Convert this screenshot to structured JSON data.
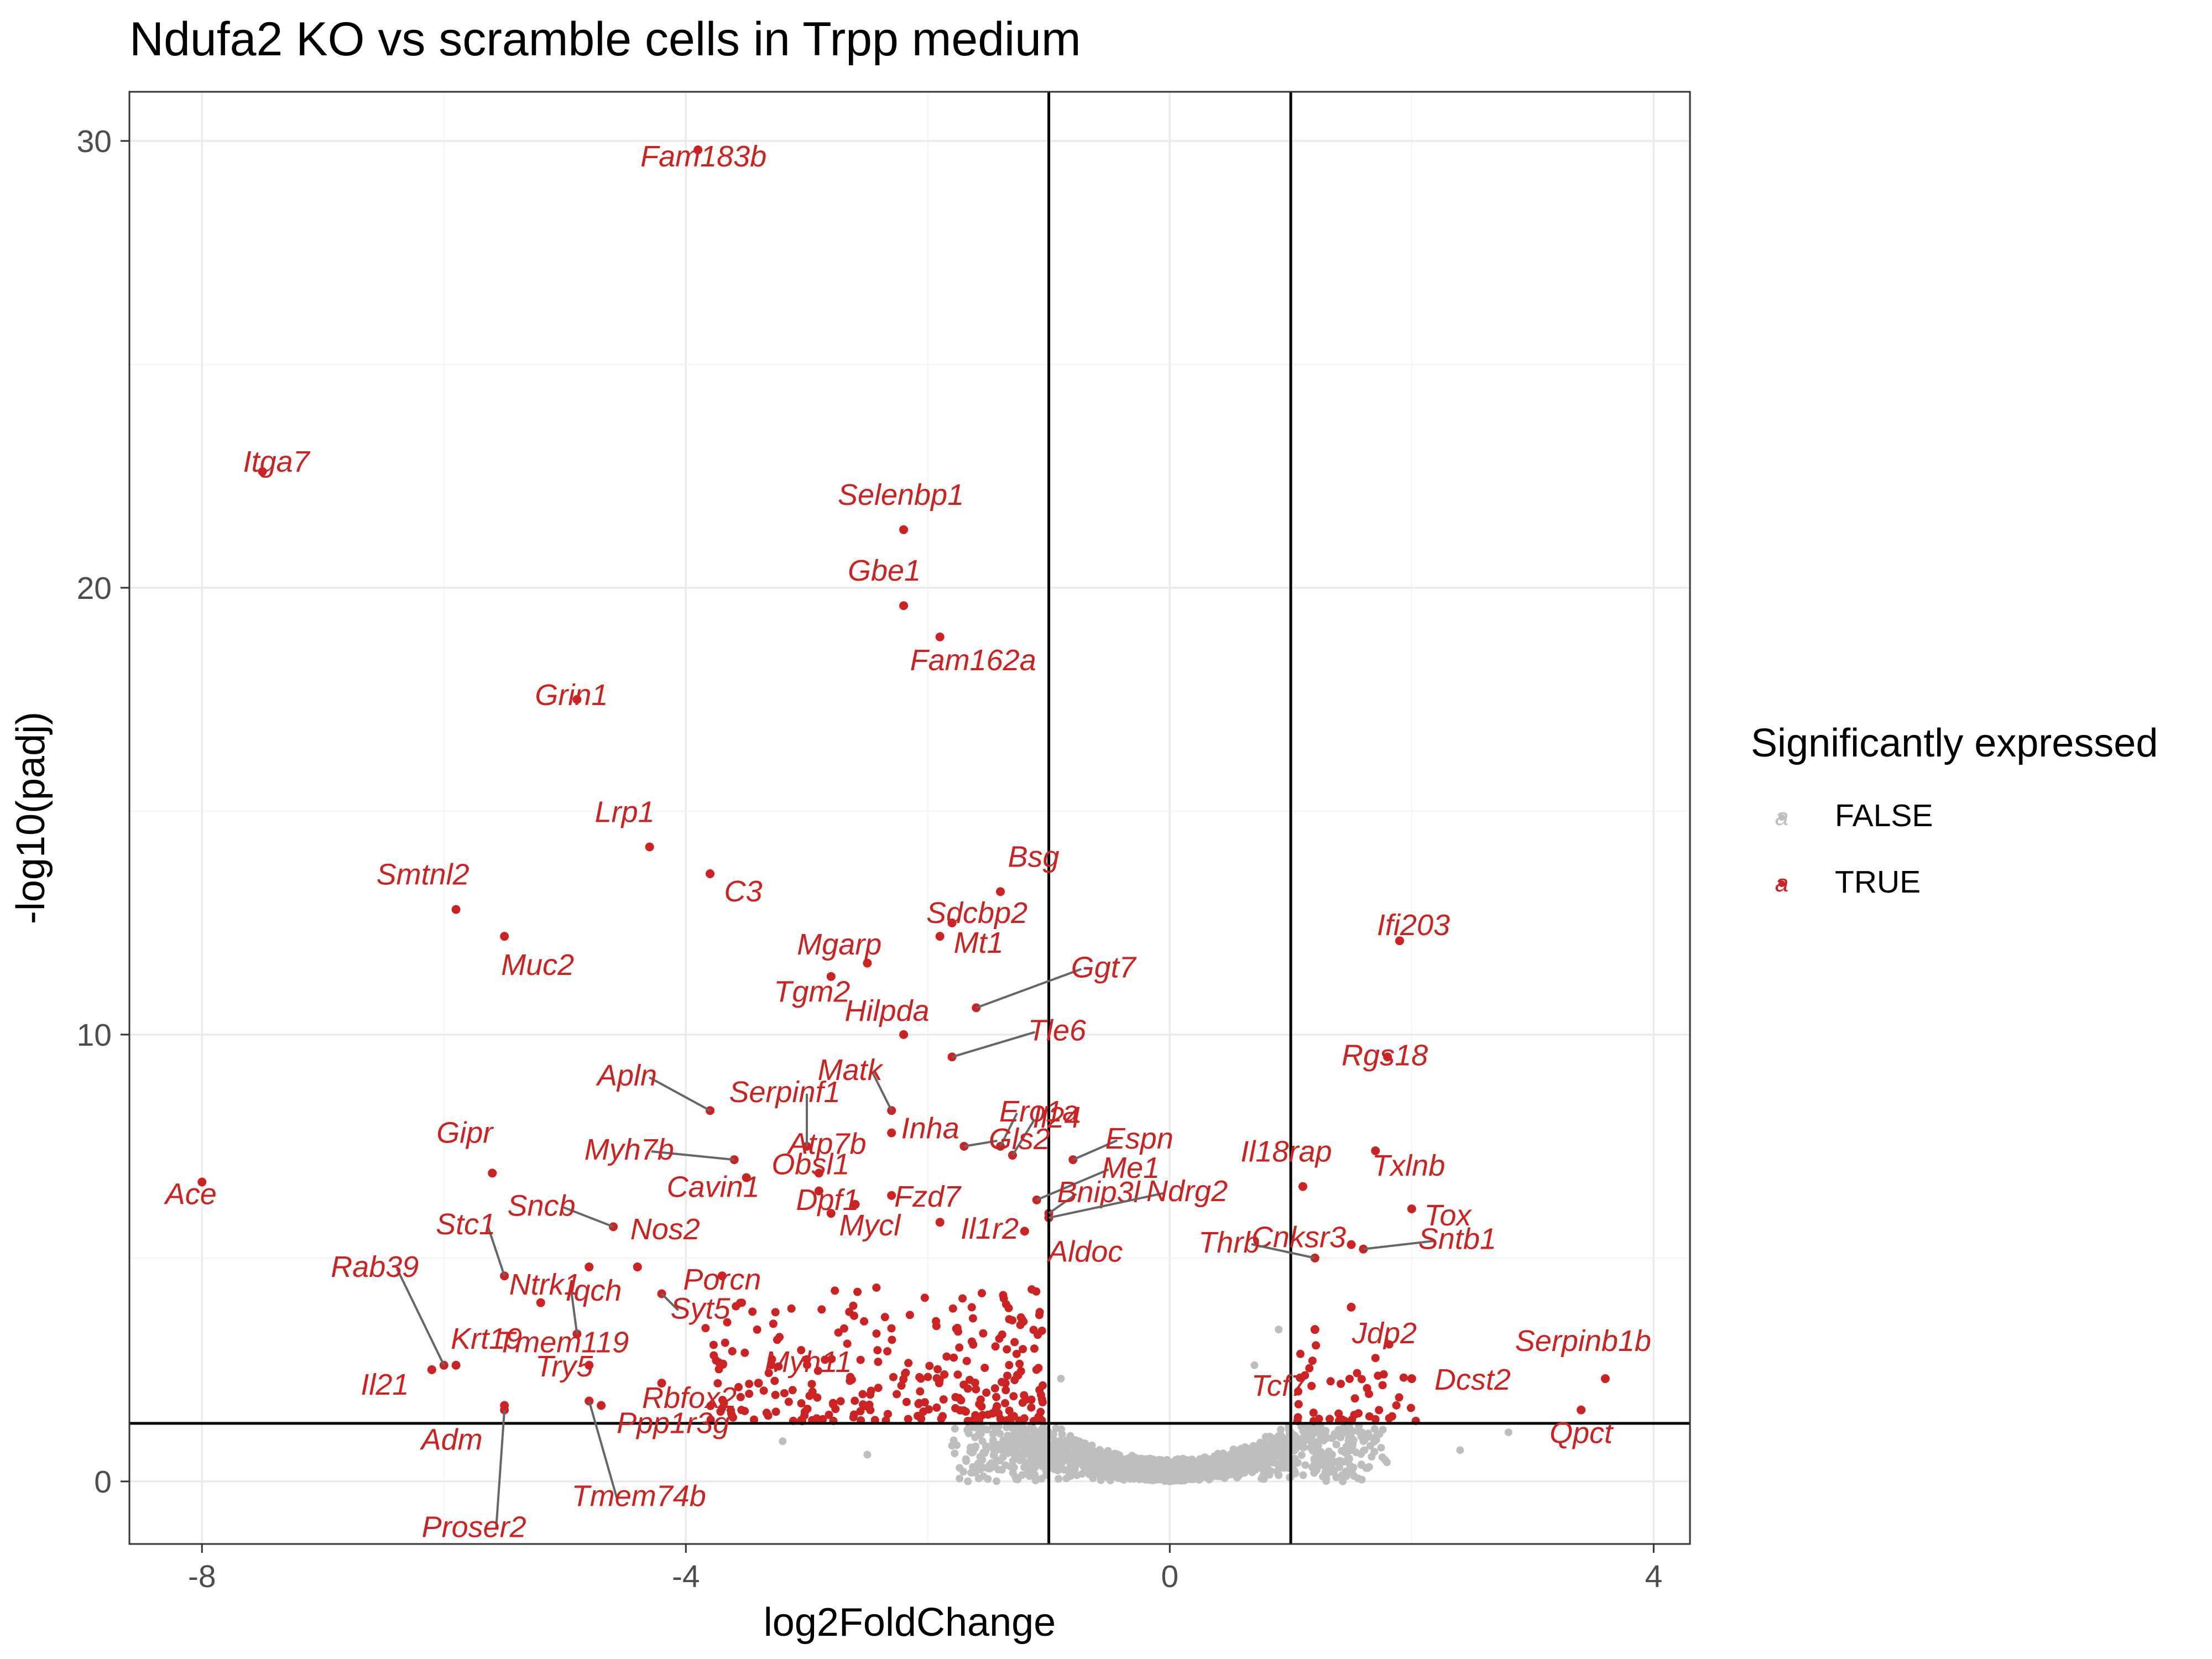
{
  "chart_data": {
    "type": "scatter",
    "title": "Ndufa2 KO vs scramble cells in Trpp medium",
    "xlabel": "log2FoldChange",
    "ylabel": "-log10(padj)",
    "xlim": [
      -8.6,
      4.3
    ],
    "ylim": [
      -1.4,
      31.1
    ],
    "x_ticks": [
      -8,
      -4,
      0,
      4
    ],
    "x_tick_labels": [
      "-8",
      "-4",
      "0",
      "4"
    ],
    "y_ticks": [
      0,
      10,
      20,
      30
    ],
    "y_tick_labels": [
      "0",
      "10",
      "20",
      "30"
    ],
    "grid": true,
    "legend": {
      "title": "Significantly expressed",
      "position": "right",
      "entries": [
        {
          "label": "FALSE",
          "color": "#bebebe"
        },
        {
          "label": "TRUE",
          "color": "#cc2222"
        }
      ]
    },
    "thresholds": {
      "vlines": [
        -1,
        1
      ],
      "hline": 1.3
    },
    "colors": {
      "significant": "#cc2222",
      "not_significant": "#bebebe",
      "threshold_line": "#000000"
    },
    "series": [
      {
        "name": "TRUE",
        "color": "#cc2222",
        "points": [
          {
            "x": -3.9,
            "y": 29.8,
            "label": "Fam183b"
          },
          {
            "x": -7.5,
            "y": 22.6,
            "label": "Itga7"
          },
          {
            "x": -2.2,
            "y": 21.3,
            "label": "Selenbp1"
          },
          {
            "x": -2.2,
            "y": 19.6,
            "label": "Gbe1"
          },
          {
            "x": -1.9,
            "y": 18.9,
            "label": "Fam162a"
          },
          {
            "x": -4.9,
            "y": 17.5,
            "label": "Grin1"
          },
          {
            "x": -4.3,
            "y": 14.2,
            "label": "Lrp1"
          },
          {
            "x": -5.9,
            "y": 12.8,
            "label": "Smtnl2"
          },
          {
            "x": -3.8,
            "y": 13.6,
            "label": "C3"
          },
          {
            "x": -1.4,
            "y": 13.2,
            "label": "Bsg"
          },
          {
            "x": -1.8,
            "y": 12.5,
            "label": "Sdcbp2"
          },
          {
            "x": -5.5,
            "y": 12.2,
            "label": "Muc2"
          },
          {
            "x": -2.8,
            "y": 11.3,
            "label": "Mgarp"
          },
          {
            "x": -1.9,
            "y": 12.2,
            "label": "Mt1"
          },
          {
            "x": -1.6,
            "y": 10.6,
            "label": "Ggt7"
          },
          {
            "x": -2.2,
            "y": 10.0,
            "label": "Hilpda"
          },
          {
            "x": -1.8,
            "y": 9.5,
            "label": "Tle6"
          },
          {
            "x": -2.5,
            "y": 11.6,
            "label": "Tgm2"
          },
          {
            "x": -1.4,
            "y": 7.5,
            "label": "Ero1a"
          },
          {
            "x": -1.1,
            "y": 6.3,
            "label": "Me1"
          },
          {
            "x": -3.8,
            "y": 8.3,
            "label": "Apln"
          },
          {
            "x": -3.0,
            "y": 7.5,
            "label": "Serpinf1"
          },
          {
            "x": -2.3,
            "y": 8.3,
            "label": "Matk"
          },
          {
            "x": -2.3,
            "y": 7.8,
            "label": "Inha"
          },
          {
            "x": -1.3,
            "y": 7.3,
            "label": "Il24"
          },
          {
            "x": -1.7,
            "y": 7.5,
            "label": "Gls2"
          },
          {
            "x": -3.6,
            "y": 7.2,
            "label": "Myh7b"
          },
          {
            "x": -2.9,
            "y": 6.9,
            "label": "Atp7b"
          },
          {
            "x": -2.9,
            "y": 6.5,
            "label": "Obsl1"
          },
          {
            "x": -1.0,
            "y": 6.0,
            "label": "Bnip3l"
          },
          {
            "x": -0.8,
            "y": 7.2,
            "label": "Espn"
          },
          {
            "x": -2.8,
            "y": 6.0,
            "label": "Mycl"
          },
          {
            "x": -2.6,
            "y": 6.2,
            "label": "Dpf1"
          },
          {
            "x": -2.3,
            "y": 6.4,
            "label": "Fzd7"
          },
          {
            "x": -3.5,
            "y": 6.8,
            "label": "Cavin1"
          },
          {
            "x": -5.6,
            "y": 6.9,
            "label": "Gipr"
          },
          {
            "x": -8.0,
            "y": 6.7,
            "label": "Ace"
          },
          {
            "x": -1.0,
            "y": 5.9,
            "label": "Ndrg2"
          },
          {
            "x": -1.9,
            "y": 5.8,
            "label": "Il1r2"
          },
          {
            "x": -4.6,
            "y": 5.7,
            "label": "Sncb"
          },
          {
            "x": -4.4,
            "y": 4.8,
            "label": "Nos2"
          },
          {
            "x": -1.2,
            "y": 5.6,
            "label": "Aldoc"
          },
          {
            "x": -5.5,
            "y": 4.6,
            "label": "Stc1"
          },
          {
            "x": -4.8,
            "y": 4.8,
            "label": "Ntrk1"
          },
          {
            "x": -3.7,
            "y": 4.6,
            "label": "Porcn"
          },
          {
            "x": -5.2,
            "y": 4.0,
            "label": "Tmem119"
          },
          {
            "x": -4.2,
            "y": 4.2,
            "label": "Syt5"
          },
          {
            "x": -4.9,
            "y": 3.3,
            "label": "Iqch"
          },
          {
            "x": -6.0,
            "y": 2.6,
            "label": "Rab39"
          },
          {
            "x": -5.9,
            "y": 2.6,
            "label": "Krt19"
          },
          {
            "x": -6.1,
            "y": 2.5,
            "label": "Il21"
          },
          {
            "x": -4.2,
            "y": 2.2,
            "label": "Rbfox2"
          },
          {
            "x": -3.4,
            "y": 2.2,
            "label": "Myh11"
          },
          {
            "x": -4.8,
            "y": 2.6,
            "label": "Try5"
          },
          {
            "x": -5.5,
            "y": 1.7,
            "label": "Adm"
          },
          {
            "x": -5.5,
            "y": 1.6,
            "label": "Proser2"
          },
          {
            "x": -4.7,
            "y": 1.7,
            "label": "Ppp1r3g"
          },
          {
            "x": -4.8,
            "y": 1.8,
            "label": "Tmem74b"
          },
          {
            "x": 1.9,
            "y": 12.1,
            "label": "Ifi203"
          },
          {
            "x": 1.8,
            "y": 9.5,
            "label": "Rgs18"
          },
          {
            "x": 1.7,
            "y": 7.4,
            "label": "Txlnb"
          },
          {
            "x": 1.1,
            "y": 6.6,
            "label": "Il18rap"
          },
          {
            "x": 2.0,
            "y": 6.1,
            "label": "Tox"
          },
          {
            "x": 1.5,
            "y": 5.3,
            "label": "Cnksr3"
          },
          {
            "x": 1.6,
            "y": 5.2,
            "label": "Sntb1"
          },
          {
            "x": 1.2,
            "y": 5.0,
            "label": "Thrb"
          },
          {
            "x": 1.2,
            "y": 3.4,
            "label": "Tcf7"
          },
          {
            "x": 1.5,
            "y": 3.9,
            "label": "Jdp2"
          },
          {
            "x": 3.6,
            "y": 2.3,
            "label": "Serpinb1b"
          },
          {
            "x": 2.0,
            "y": 2.3,
            "label": "Dcst2"
          },
          {
            "x": 3.4,
            "y": 1.6,
            "label": "Qpct"
          }
        ]
      },
      {
        "name": "FALSE",
        "color": "#bebebe",
        "points": [
          {
            "x": -1.0,
            "y": 1.1
          },
          {
            "x": -0.8,
            "y": 0.6
          },
          {
            "x": -0.6,
            "y": 0.3
          },
          {
            "x": -0.4,
            "y": 0.15
          },
          {
            "x": -0.2,
            "y": 0.05
          },
          {
            "x": 0.0,
            "y": 0.0
          },
          {
            "x": 0.2,
            "y": 0.05
          },
          {
            "x": 0.4,
            "y": 0.15
          },
          {
            "x": 0.6,
            "y": 0.3
          },
          {
            "x": 0.8,
            "y": 0.6
          },
          {
            "x": 1.0,
            "y": 1.1
          },
          {
            "x": -0.9,
            "y": 2.3
          },
          {
            "x": 0.7,
            "y": 2.6
          },
          {
            "x": 0.9,
            "y": 3.4
          },
          {
            "x": -1.8,
            "y": 0.8
          },
          {
            "x": -2.5,
            "y": 0.6
          },
          {
            "x": -3.2,
            "y": 0.9
          },
          {
            "x": 1.6,
            "y": 0.9
          },
          {
            "x": 2.4,
            "y": 0.7
          },
          {
            "x": 2.8,
            "y": 1.1
          }
        ]
      }
    ]
  }
}
